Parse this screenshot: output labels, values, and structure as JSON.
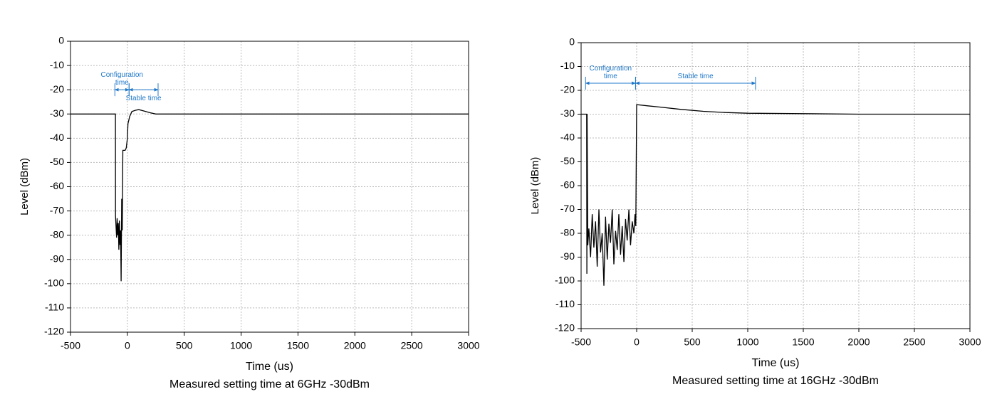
{
  "chart_data": [
    {
      "type": "line",
      "caption": "Measured setting time at 6GHz -30dBm",
      "x_label": "Time (us)",
      "y_label": "Level (dBm)",
      "color": "#000000",
      "grid": true,
      "xlim": [
        -500,
        3000
      ],
      "xticks": [
        -500,
        0,
        500,
        1000,
        1500,
        2000,
        2500,
        3000
      ],
      "ylim": [
        -120,
        0
      ],
      "yticks": [
        0,
        -10,
        -20,
        -30,
        -40,
        -50,
        -60,
        -70,
        -80,
        -90,
        -100,
        -110,
        -120
      ],
      "x": [
        -500,
        -105,
        -104,
        -95,
        -90,
        -85,
        -80,
        -75,
        -70,
        -65,
        -60,
        -55,
        -50,
        -45,
        -40,
        -35,
        -30,
        -25,
        -20,
        -10,
        0,
        5,
        10,
        20,
        40,
        70,
        100,
        150,
        200,
        250,
        300,
        3000
      ],
      "values": [
        -30,
        -30,
        -72,
        -81,
        -73,
        -80,
        -75,
        -86,
        -74,
        -84,
        -78,
        -99,
        -65,
        -78,
        -45,
        -45,
        -45,
        -45,
        -45,
        -44,
        -40,
        -34,
        -33,
        -31,
        -29,
        -28.5,
        -28.2,
        -28.8,
        -29.5,
        -30,
        -30,
        -30
      ],
      "annotation_color": "#1f78c8",
      "annotations": [
        {
          "text": "Configuration time",
          "span": [
            -110,
            15
          ],
          "y": -20,
          "label_side": "above"
        },
        {
          "text": "Stable time",
          "span": [
            15,
            270
          ],
          "y": -20,
          "label_side": "below"
        }
      ]
    },
    {
      "type": "line",
      "caption": "Measured setting time at 16GHz -30dBm",
      "x_label": "Time (us)",
      "y_label": "Level (dBm)",
      "color": "#000000",
      "grid": true,
      "xlim": [
        -500,
        3000
      ],
      "xticks": [
        -500,
        0,
        500,
        1000,
        1500,
        2000,
        2500,
        3000
      ],
      "ylim": [
        -120,
        0
      ],
      "yticks": [
        0,
        -10,
        -20,
        -30,
        -40,
        -50,
        -60,
        -70,
        -80,
        -90,
        -100,
        -110,
        -120
      ],
      "x": [
        -500,
        -450,
        -448,
        -446,
        -440,
        -430,
        -415,
        -400,
        -385,
        -370,
        -355,
        -340,
        -325,
        -310,
        -295,
        -280,
        -265,
        -250,
        -235,
        -220,
        -205,
        -190,
        -175,
        -160,
        -145,
        -130,
        -115,
        -100,
        -85,
        -70,
        -55,
        -40,
        -25,
        -15,
        -8,
        0,
        100,
        200,
        400,
        600,
        800,
        1000,
        1500,
        2000,
        2500,
        3000
      ],
      "values": [
        -30,
        -30,
        -97,
        -30,
        -85,
        -78,
        -90,
        -72,
        -86,
        -75,
        -94,
        -70,
        -88,
        -80,
        -102,
        -73,
        -91,
        -76,
        -84,
        -70,
        -93,
        -79,
        -87,
        -72,
        -89,
        -77,
        -92,
        -74,
        -83,
        -70,
        -85,
        -75,
        -80,
        -72,
        -77,
        -26,
        -26.5,
        -27,
        -28,
        -28.8,
        -29.3,
        -29.6,
        -29.8,
        -30,
        -30,
        -30
      ],
      "annotation_color": "#1f78c8",
      "annotations": [
        {
          "text": "Configuration time",
          "span": [
            -460,
            -10
          ],
          "y": -17,
          "label_side": "above"
        },
        {
          "text": "Stable time",
          "span": [
            -10,
            1070
          ],
          "y": -17,
          "label_side": "above"
        }
      ]
    }
  ]
}
